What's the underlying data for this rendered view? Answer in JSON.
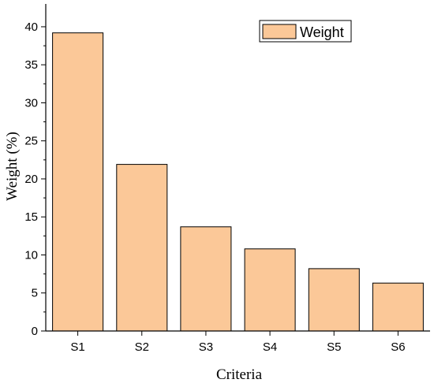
{
  "chart_data": {
    "type": "bar",
    "categories": [
      "S1",
      "S2",
      "S3",
      "S4",
      "S5",
      "S6"
    ],
    "series": [
      {
        "name": "Weight",
        "values": [
          39.2,
          21.9,
          13.7,
          10.8,
          8.2,
          6.3
        ]
      }
    ],
    "title": "",
    "xlabel": "Criteria",
    "ylabel": "Weight (%)",
    "ylim": [
      0,
      43
    ],
    "yticks": [
      0,
      5,
      10,
      15,
      20,
      25,
      30,
      35,
      40
    ],
    "grid": false,
    "legend_position": "top-right",
    "colors": {
      "bar_fill": "#FBC898",
      "bar_stroke": "#000000",
      "axis": "#000000"
    }
  }
}
